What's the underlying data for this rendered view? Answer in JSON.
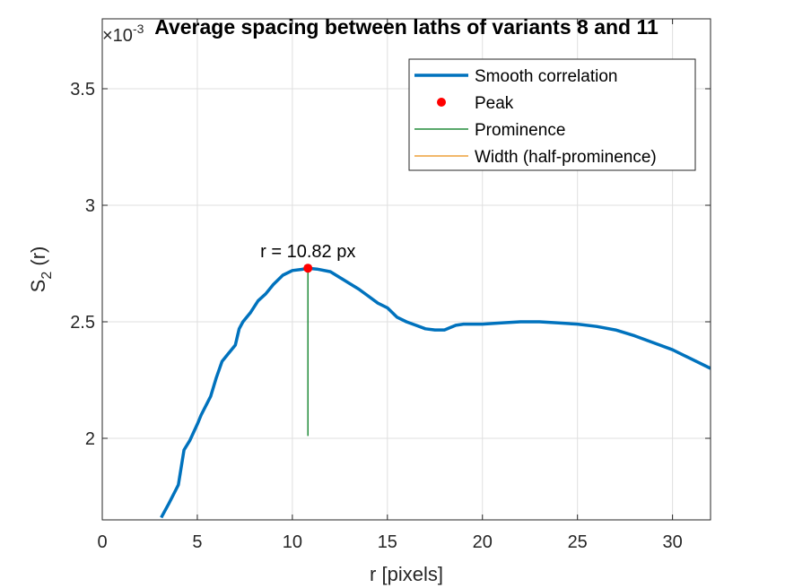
{
  "chart_data": {
    "type": "line",
    "title": "Average spacing between laths of variants 8 and 11",
    "xlabel": "r [pixels]",
    "ylabel_main": "S",
    "ylabel_sub": "2",
    "ylabel_tail": " (r)",
    "exponent_label": "×10",
    "exponent_power": "-3",
    "xlim": [
      0,
      32
    ],
    "ylim": [
      1.65,
      3.8
    ],
    "grid": true,
    "legend_position": "top-right",
    "xticks": [
      0,
      5,
      10,
      15,
      20,
      25,
      30
    ],
    "yticks": [
      2,
      2.5,
      3,
      3.5
    ],
    "xtick_labels": [
      "0",
      "5",
      "10",
      "15",
      "20",
      "25",
      "30"
    ],
    "ytick_labels": [
      "2",
      "2.5",
      "3",
      "3.5"
    ],
    "series": [
      {
        "name": "Smooth correlation",
        "color": "#0072BD",
        "x": [
          3.1,
          3.5,
          4.0,
          4.3,
          4.6,
          5.0,
          5.2,
          5.7,
          6.0,
          6.3,
          6.6,
          7.0,
          7.2,
          7.4,
          7.8,
          8.2,
          8.6,
          9.0,
          9.5,
          10.0,
          10.5,
          10.82,
          11.3,
          12.0,
          12.5,
          13.0,
          13.5,
          14.0,
          14.5,
          15.0,
          15.5,
          16.0,
          16.5,
          17.0,
          17.5,
          18.0,
          18.3,
          18.6,
          19.0,
          19.5,
          20.0,
          21.0,
          22.0,
          23.0,
          24.0,
          25.0,
          26.0,
          27.0,
          28.0,
          29.0,
          30.0,
          31.0,
          32.0
        ],
        "values": [
          1.66,
          1.72,
          1.8,
          1.95,
          1.99,
          2.06,
          2.1,
          2.18,
          2.26,
          2.33,
          2.36,
          2.4,
          2.47,
          2.5,
          2.54,
          2.59,
          2.62,
          2.66,
          2.7,
          2.72,
          2.725,
          2.73,
          2.726,
          2.715,
          2.69,
          2.665,
          2.64,
          2.61,
          2.58,
          2.56,
          2.52,
          2.5,
          2.485,
          2.47,
          2.465,
          2.465,
          2.475,
          2.485,
          2.49,
          2.49,
          2.49,
          2.495,
          2.5,
          2.5,
          2.495,
          2.49,
          2.48,
          2.465,
          2.44,
          2.41,
          2.38,
          2.34,
          2.3
        ]
      },
      {
        "name": "Peak",
        "color": "#FF0000",
        "x": [
          10.82
        ],
        "values": [
          2.73
        ]
      },
      {
        "name": "Prominence",
        "color": "#228B3A",
        "x": [
          10.82,
          10.82
        ],
        "values": [
          2.01,
          2.73
        ]
      },
      {
        "name": "Width (half-prominence)",
        "color": "#EDA13A",
        "x": [],
        "values": []
      }
    ],
    "annotations": [
      {
        "text": "r = 10.82 px",
        "x": 10.82,
        "y": 2.73
      }
    ]
  }
}
